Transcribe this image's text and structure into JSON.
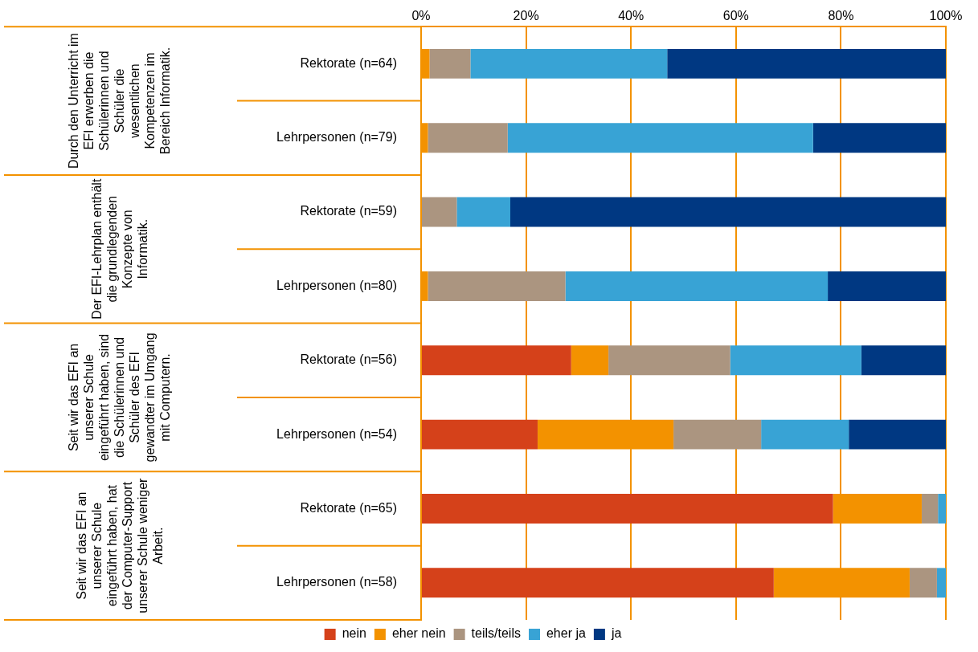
{
  "chart_data": {
    "type": "bar",
    "orientation": "horizontal",
    "stacked": true,
    "categories": [
      "Rektorate (n=64)",
      "Lehrpersonen (n=79)",
      "Rektorate (n=59)",
      "Lehrpersonen (n=80)",
      "Rektorate (n=56)",
      "Lehrpersonen (n=54)",
      "Rektorate (n=65)",
      "Lehrpersonen (n=58)"
    ],
    "series": [
      {
        "name": "nein",
        "color": "#d5411a",
        "values": [
          0,
          0,
          0,
          0,
          28.6,
          22.2,
          78.5,
          67.2
        ]
      },
      {
        "name": "eher nein",
        "color": "#f39200",
        "values": [
          1.6,
          1.3,
          0,
          1.3,
          7.1,
          25.9,
          16.9,
          25.9
        ]
      },
      {
        "name": "teils/teils",
        "color": "#ab9580",
        "values": [
          7.8,
          15.2,
          6.8,
          26.2,
          23.2,
          16.7,
          3.1,
          5.2
        ]
      },
      {
        "name": "eher ja",
        "color": "#38a3d5",
        "values": [
          37.5,
          58.2,
          10.2,
          50,
          25,
          16.7,
          1.5,
          1.7
        ]
      },
      {
        "name": "ja",
        "color": "#003882",
        "values": [
          53.1,
          25.3,
          83,
          22.5,
          16.1,
          18.5,
          0,
          0
        ]
      }
    ],
    "xlim": [
      0,
      100
    ],
    "xticks": [
      {
        "value": 0,
        "label": "0%"
      },
      {
        "value": 20,
        "label": "20%"
      },
      {
        "value": 40,
        "label": "40%"
      },
      {
        "value": 60,
        "label": "60%"
      },
      {
        "value": 80,
        "label": "80%"
      },
      {
        "value": 100,
        "label": "100%"
      }
    ],
    "grid": "x",
    "legend": "bottom",
    "annotations": [
      "Durch den Unterricht im EFI erwerben die Schülerinnen und Schüler die wesentlichen Kompetenzen im Bereich Informatik.",
      "Der EFI-Lehrplan enthält die grundlegenden Konzepte von Informatik.",
      "Seit wir das EFI an unserer Schule eingeführt haben, sind die Schülerinnen und Schüler des EFI gewandter im Umgang mit Computern.",
      "Seit wir das EFI an unserer Schule eingeführt haben, hat der Computer-Support unserer Schule weniger Arbeit."
    ]
  }
}
